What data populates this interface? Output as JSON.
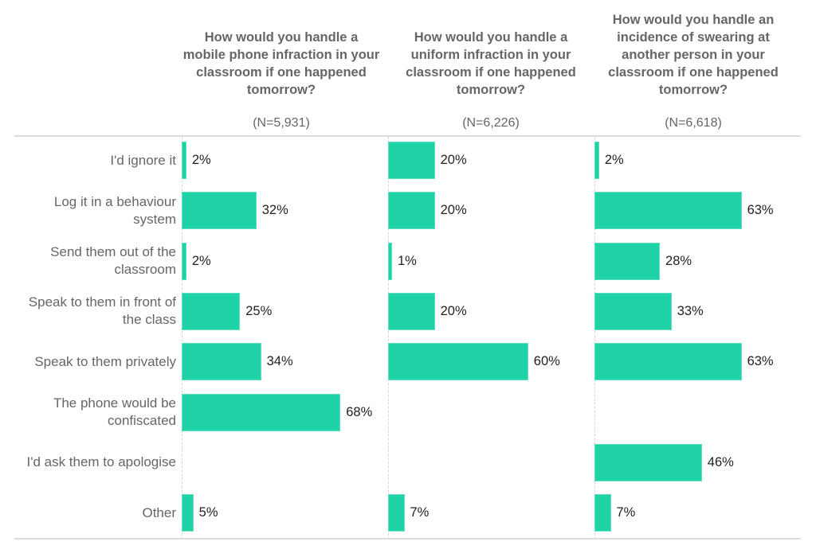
{
  "chart_data": {
    "type": "bar",
    "orientation": "horizontal",
    "units": "%",
    "categories": [
      "I'd ignore it",
      "Log it in a behaviour system",
      "Send them out of the classroom",
      "Speak to them in front of the class",
      "Speak to them privately",
      "The phone would be confiscated",
      "I'd ask them to apologise",
      "Other"
    ],
    "panels": [
      {
        "title": "How would you handle a mobile phone infraction in your classroom if one happened tomorrow?",
        "n_label": "(N=5,931)",
        "values": [
          2,
          32,
          2,
          25,
          34,
          68,
          null,
          5
        ],
        "labels": [
          "2%",
          "32%",
          "2%",
          "25%",
          "34%",
          "68%",
          null,
          "5%"
        ]
      },
      {
        "title": "How would you handle a uniform infraction in your classroom if one happened tomorrow?",
        "n_label": "(N=6,226)",
        "values": [
          20,
          20,
          1,
          20,
          60,
          null,
          null,
          7
        ],
        "labels": [
          "20%",
          "20%",
          "1%",
          "20%",
          "60%",
          null,
          null,
          "7%"
        ]
      },
      {
        "title": "How would you handle an incidence of swearing at another person in your classroom if one happened tomorrow?",
        "n_label": "(N=6,618)",
        "values": [
          2,
          63,
          28,
          33,
          63,
          null,
          46,
          7
        ],
        "labels": [
          "2%",
          "63%",
          "28%",
          "33%",
          "63%",
          null,
          "46%",
          "7%"
        ]
      }
    ],
    "xlim": [
      0,
      100
    ],
    "grid": false,
    "legend": "none",
    "bar_color": "#20d3a7"
  }
}
